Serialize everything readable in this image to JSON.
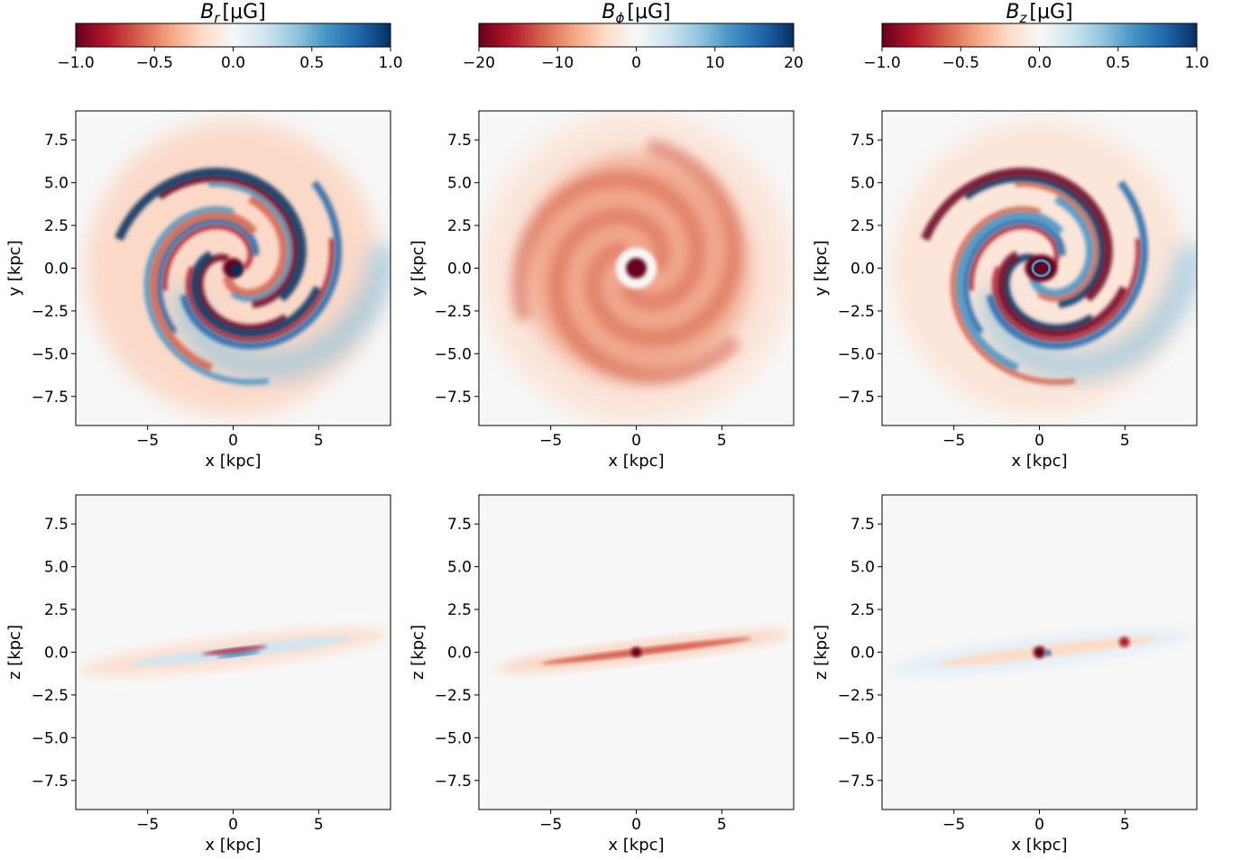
{
  "figure": {
    "columns": [
      {
        "component": "Br",
        "title_main": "B",
        "title_sub": "r",
        "title_unit": "[μG]",
        "colorbar": {
          "vmin": -1.0,
          "vmax": 1.0,
          "ticks": [
            "−1.0",
            "−0.5",
            "0.0",
            "0.5",
            "1.0"
          ],
          "tick_values": [
            -1.0,
            -0.5,
            0.0,
            0.5,
            1.0
          ]
        }
      },
      {
        "component": "Bphi",
        "title_main": "B",
        "title_sub": "ϕ",
        "title_unit": "[μG]",
        "colorbar": {
          "vmin": -20,
          "vmax": 20,
          "ticks": [
            "−20",
            "−10",
            "0",
            "10",
            "20"
          ],
          "tick_values": [
            -20,
            -10,
            0,
            10,
            20
          ]
        }
      },
      {
        "component": "Bz",
        "title_main": "B",
        "title_sub": "z",
        "title_unit": "[μG]",
        "colorbar": {
          "vmin": -1.0,
          "vmax": 1.0,
          "ticks": [
            "−1.0",
            "−0.5",
            "0.0",
            "0.5",
            "1.0"
          ],
          "tick_values": [
            -1.0,
            -0.5,
            0.0,
            0.5,
            1.0
          ]
        }
      }
    ],
    "colormap": "RdBu",
    "colormap_stops": [
      "#67001f",
      "#b2182b",
      "#d6604d",
      "#f4a582",
      "#fddbc7",
      "#f7f7f7",
      "#d1e5f0",
      "#92c5de",
      "#4393c3",
      "#2166ac",
      "#053061"
    ],
    "rows": [
      {
        "view": "face-on",
        "xlabel": "x [kpc]",
        "ylabel": "y [kpc]"
      },
      {
        "view": "edge-on",
        "xlabel": "x [kpc]",
        "ylabel": "z [kpc]"
      }
    ]
  },
  "chart_data": {
    "type": "heatmap",
    "extent": {
      "xlim": [
        -9.2,
        9.2
      ],
      "ylim": [
        -9.2,
        9.2
      ]
    },
    "x_ticks": [
      -5,
      0,
      5
    ],
    "x_tick_labels": [
      "−5",
      "0",
      "5"
    ],
    "y_ticks": [
      7.5,
      5.0,
      2.5,
      0.0,
      -2.5,
      -5.0,
      -7.5
    ],
    "y_tick_labels": [
      "7.5",
      "5.0",
      "2.5",
      "0.0",
      "−2.5",
      "−5.0",
      "−7.5"
    ],
    "panels": [
      {
        "row": 0,
        "col": 0,
        "component": "Br",
        "view": "face-on"
      },
      {
        "row": 0,
        "col": 1,
        "component": "Bphi",
        "view": "face-on"
      },
      {
        "row": 0,
        "col": 2,
        "component": "Bz",
        "view": "face-on"
      },
      {
        "row": 1,
        "col": 0,
        "component": "Br",
        "view": "edge-on"
      },
      {
        "row": 1,
        "col": 1,
        "component": "Bphi",
        "view": "edge-on"
      },
      {
        "row": 1,
        "col": 2,
        "component": "Bz",
        "view": "edge-on"
      }
    ]
  }
}
